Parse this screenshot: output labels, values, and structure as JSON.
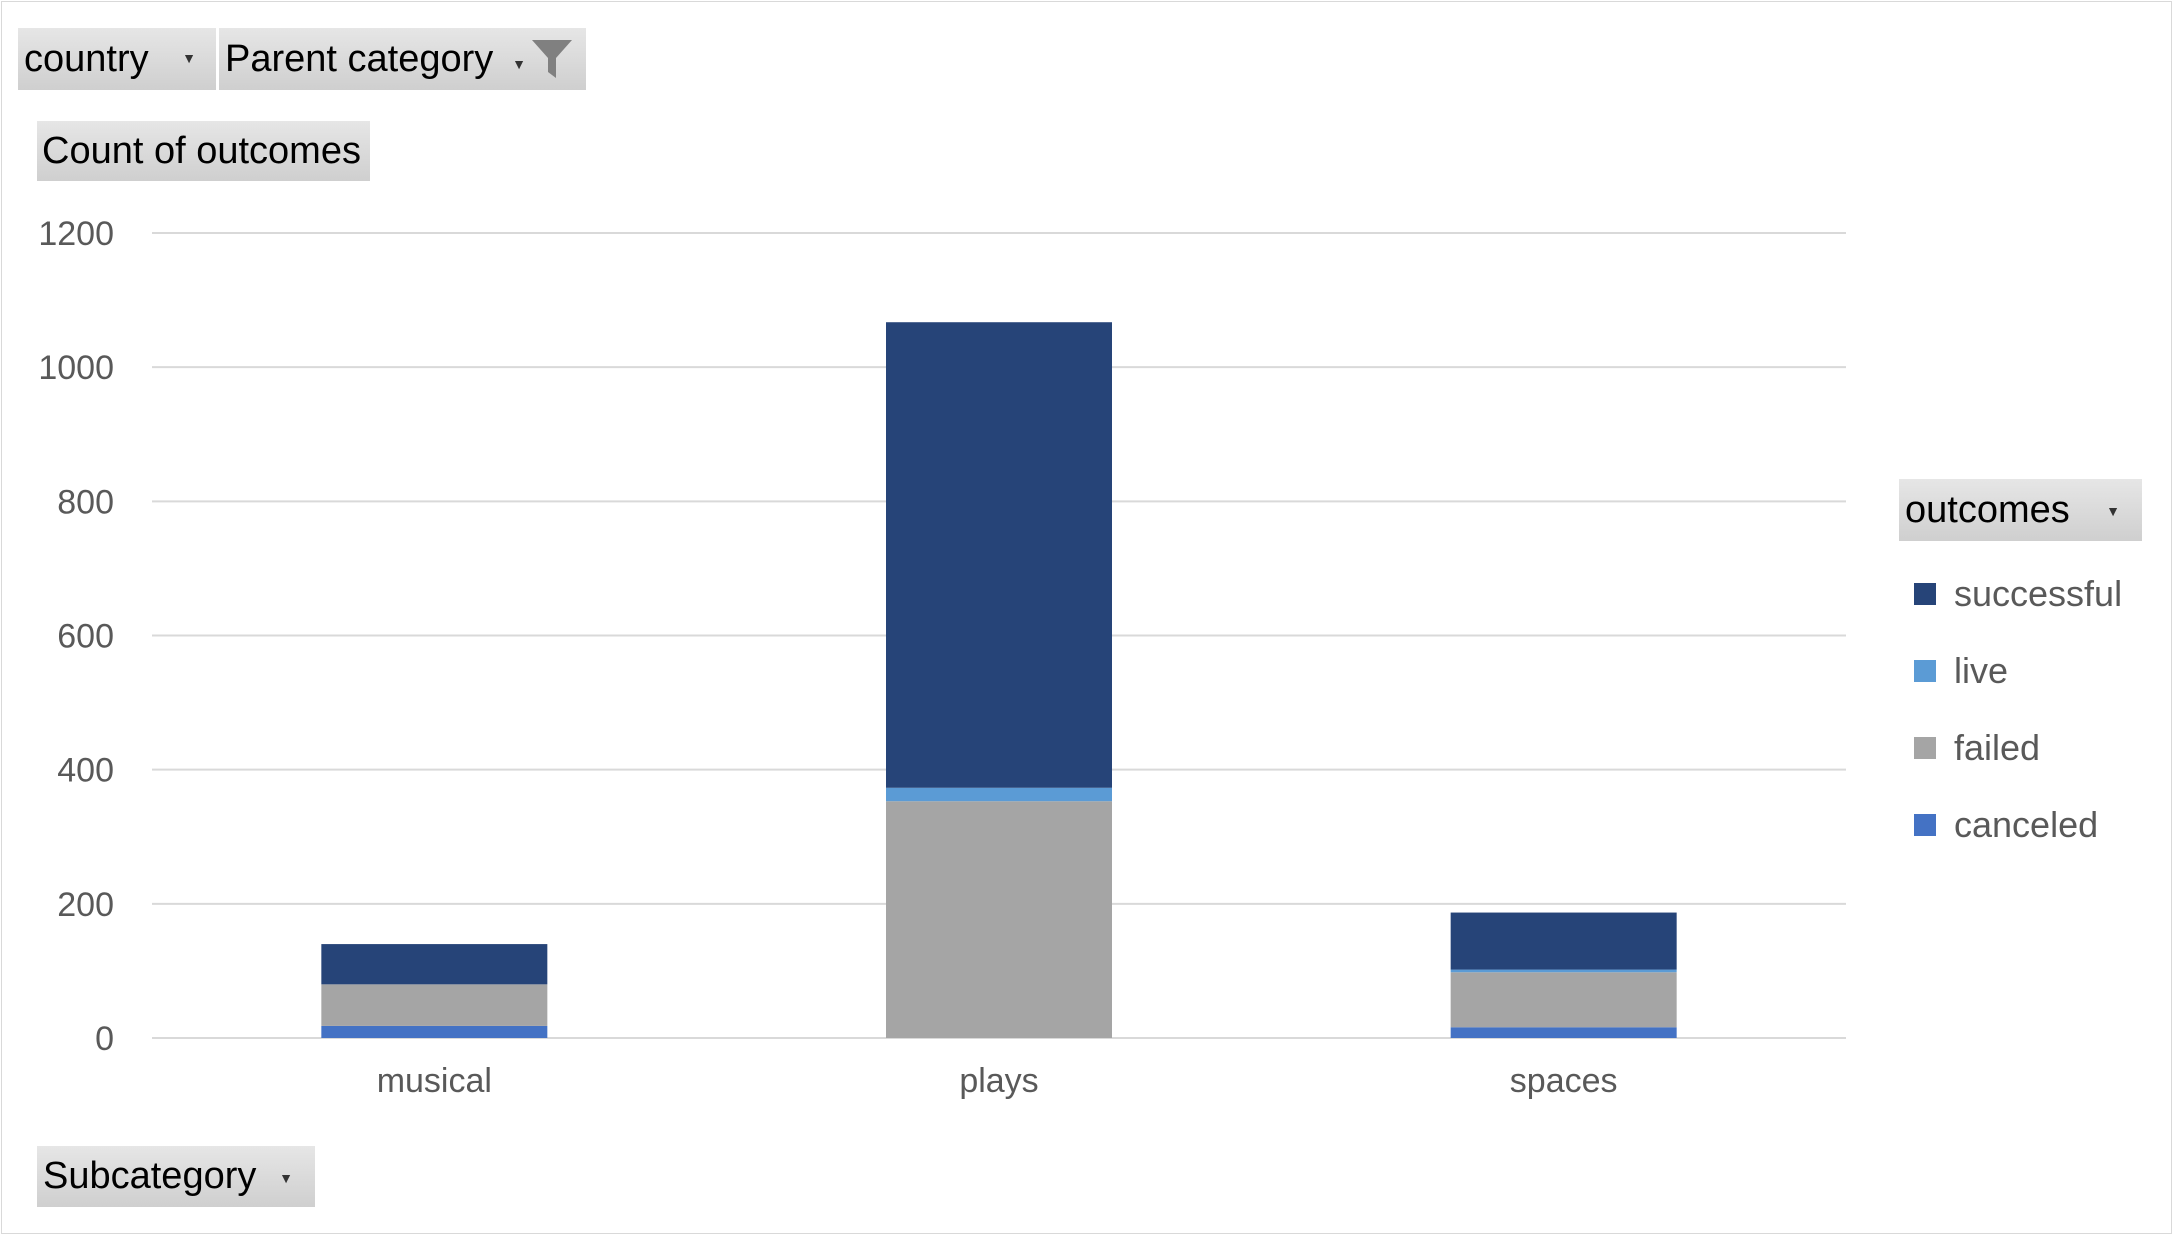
{
  "filters": {
    "country_label": "country",
    "parent_category_label": "Parent category",
    "values_label": "Count of outcomes",
    "legend_field_label": "outcomes",
    "axis_field_label": "Subcategory"
  },
  "icons": {
    "dropdown": "chevron-down-icon",
    "filter": "funnel-filter-icon"
  },
  "chart_data": {
    "type": "bar",
    "stacked": true,
    "categories": [
      "musical",
      "plays",
      "spaces"
    ],
    "series": [
      {
        "name": "canceled",
        "color": "#4472c4",
        "values": [
          18,
          0,
          16
        ]
      },
      {
        "name": "failed",
        "color": "#a5a5a5",
        "values": [
          62,
          353,
          82
        ]
      },
      {
        "name": "live",
        "color": "#5b9bd5",
        "values": [
          0,
          20,
          4
        ]
      },
      {
        "name": "successful",
        "color": "#264478",
        "values": [
          60,
          694,
          85
        ]
      }
    ],
    "ylim": [
      0,
      1200
    ],
    "yticks": [
      "0",
      "200",
      "400",
      "600",
      "800",
      "1000",
      "1200"
    ],
    "grid": true,
    "legend_position": "right",
    "legend_order": [
      "successful",
      "live",
      "failed",
      "canceled"
    ]
  }
}
